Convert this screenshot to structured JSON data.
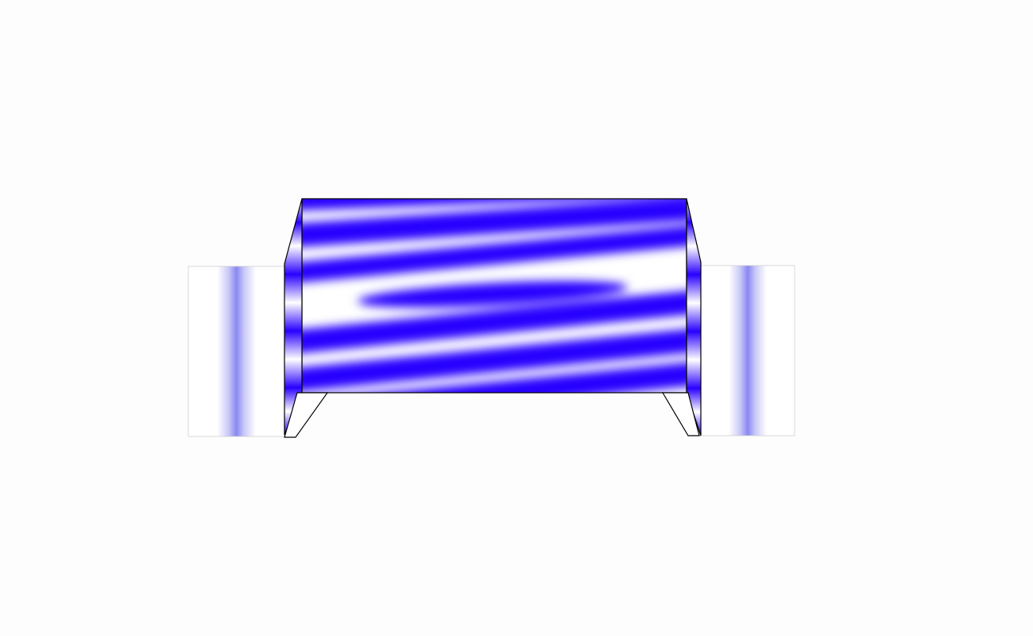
{
  "scene": {
    "title": "",
    "colors": {
      "background": "#fdfdfd",
      "fringe_dark": "#2800ff",
      "fringe_light": "#ffffff",
      "side_band": "#8e8cf4",
      "outline": "#000000"
    },
    "panels": [
      {
        "name": "left-projection-panel",
        "fringe_count": 1
      },
      {
        "name": "center-interference-panel",
        "fringe_count": 7
      },
      {
        "name": "right-projection-panel",
        "fringe_count": 1
      }
    ]
  }
}
